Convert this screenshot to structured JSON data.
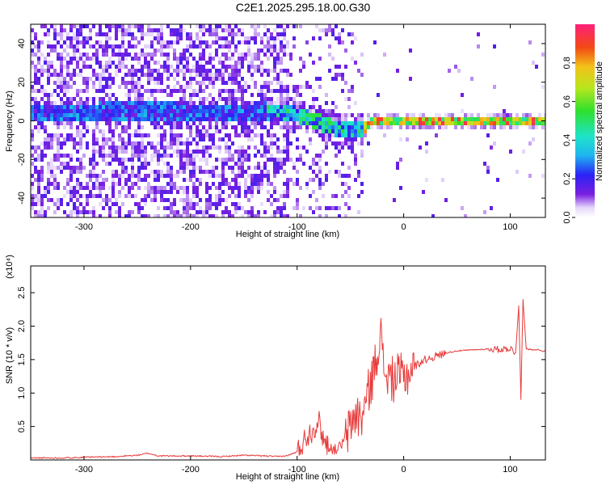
{
  "title": "C2E1.2025.295.18.00.G30",
  "colors": {
    "snr_line": "#e83a3a",
    "axis": "#000000",
    "background": "#ffffff"
  },
  "chart_data": [
    {
      "type": "heatmap",
      "xlabel": "Height of straight line (km)",
      "ylabel": "Frequency (Hz)",
      "xlim": [
        -350,
        133
      ],
      "ylim": [
        -50,
        50
      ],
      "x_ticks": [
        {
          "value": -300,
          "label": "-300"
        },
        {
          "value": -200,
          "label": "-200"
        },
        {
          "value": -100,
          "label": "-100"
        },
        {
          "value": 0,
          "label": "0"
        },
        {
          "value": 100,
          "label": "100"
        }
      ],
      "y_ticks": [
        {
          "value": 40,
          "label": "40"
        },
        {
          "value": 20,
          "label": "20"
        },
        {
          "value": 0,
          "label": "0"
        },
        {
          "value": -20,
          "label": "-20"
        },
        {
          "value": -40,
          "label": "-40"
        }
      ],
      "colorbar": {
        "label": "Normalized spectral amplitude",
        "range": [
          0,
          1
        ],
        "ticks": [
          {
            "value": 0.0,
            "label": "0.0"
          },
          {
            "value": 0.2,
            "label": "0.2"
          },
          {
            "value": 0.4,
            "label": "0.4"
          },
          {
            "value": 0.6,
            "label": "0.6"
          },
          {
            "value": 0.8,
            "label": "0.8"
          }
        ]
      },
      "ridge": {
        "height_km": [
          -350,
          -300,
          -250,
          -200,
          -150,
          -120,
          -100,
          -80,
          -60,
          -50,
          -40,
          -30,
          0,
          50,
          100,
          133
        ],
        "frequency_hz": [
          5,
          5,
          6,
          5,
          5,
          6,
          4,
          0,
          -4,
          -3,
          -3,
          1,
          1,
          1,
          1,
          1
        ]
      }
    },
    {
      "type": "line",
      "xlabel": "Height of straight line (km)",
      "ylabel": "SNR (10 * v/v)",
      "y_scale_label": "(x10⁴)",
      "xlim": [
        -350,
        133
      ],
      "ylim": [
        0,
        2.9
      ],
      "x_ticks": [
        {
          "value": -300,
          "label": "-300"
        },
        {
          "value": -200,
          "label": "-200"
        },
        {
          "value": -100,
          "label": "-100"
        },
        {
          "value": 0,
          "label": "0"
        },
        {
          "value": 100,
          "label": "100"
        }
      ],
      "y_ticks": [
        {
          "value": 0.5,
          "label": "0.5"
        },
        {
          "value": 1.0,
          "label": "1.0"
        },
        {
          "value": 1.5,
          "label": "1.5"
        },
        {
          "value": 2.0,
          "label": "2.0"
        },
        {
          "value": 2.5,
          "label": "2.5"
        }
      ],
      "series": [
        {
          "name": "SNR",
          "x": [
            -350,
            -320,
            -300,
            -270,
            -250,
            -240,
            -230,
            -200,
            -170,
            -150,
            -130,
            -120,
            -110,
            -100,
            -95,
            -90,
            -85,
            -80,
            -75,
            -70,
            -65,
            -60,
            -55,
            -50,
            -45,
            -40,
            -35,
            -30,
            -25,
            -22,
            -20,
            -18,
            -15,
            -10,
            -5,
            0,
            5,
            10,
            15,
            20,
            30,
            40,
            50,
            60,
            70,
            80,
            90,
            100,
            105,
            108,
            110,
            112,
            115,
            120,
            125,
            133
          ],
          "y": [
            0.03,
            0.03,
            0.04,
            0.05,
            0.07,
            0.1,
            0.06,
            0.06,
            0.05,
            0.07,
            0.06,
            0.05,
            0.06,
            0.12,
            0.25,
            0.38,
            0.45,
            0.6,
            0.3,
            0.2,
            0.15,
            0.2,
            0.3,
            0.5,
            0.7,
            0.6,
            0.9,
            1.2,
            1.55,
            2.05,
            1.5,
            1.35,
            1.25,
            1.2,
            1.25,
            1.25,
            1.3,
            1.4,
            1.45,
            1.5,
            1.55,
            1.6,
            1.63,
            1.64,
            1.65,
            1.66,
            1.65,
            1.67,
            1.6,
            2.3,
            0.9,
            2.4,
            1.66,
            1.65,
            1.65,
            1.62
          ]
        }
      ]
    }
  ]
}
